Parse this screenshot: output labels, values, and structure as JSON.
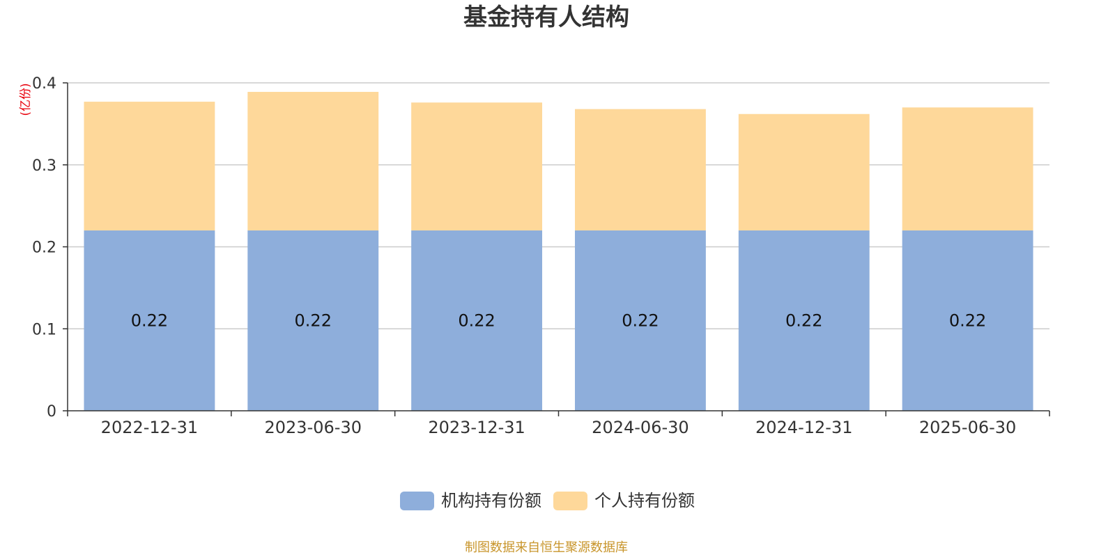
{
  "chart_data": {
    "type": "bar",
    "stacked": true,
    "title": "基金持有人结构",
    "ylabel": "(亿份)",
    "xlabel": "",
    "categories": [
      "2022-12-31",
      "2023-06-30",
      "2023-12-31",
      "2024-06-30",
      "2024-12-31",
      "2025-06-30"
    ],
    "series": [
      {
        "name": "机构持有份额",
        "color": "#8eaedb",
        "values": [
          0.22,
          0.22,
          0.22,
          0.22,
          0.22,
          0.22
        ],
        "labels": [
          "0.22",
          "0.22",
          "0.22",
          "0.22",
          "0.22",
          "0.22"
        ]
      },
      {
        "name": "个人持有份额",
        "color": "#fed89a",
        "values": [
          0.157,
          0.169,
          0.156,
          0.148,
          0.142,
          0.15
        ]
      }
    ],
    "ylim": [
      0,
      0.4
    ],
    "yticks": [
      "0",
      "0.1",
      "0.2",
      "0.3",
      "0.4"
    ],
    "grid": true,
    "legend_position": "bottom-center"
  },
  "source_note": "制图数据来自恒生聚源数据库"
}
